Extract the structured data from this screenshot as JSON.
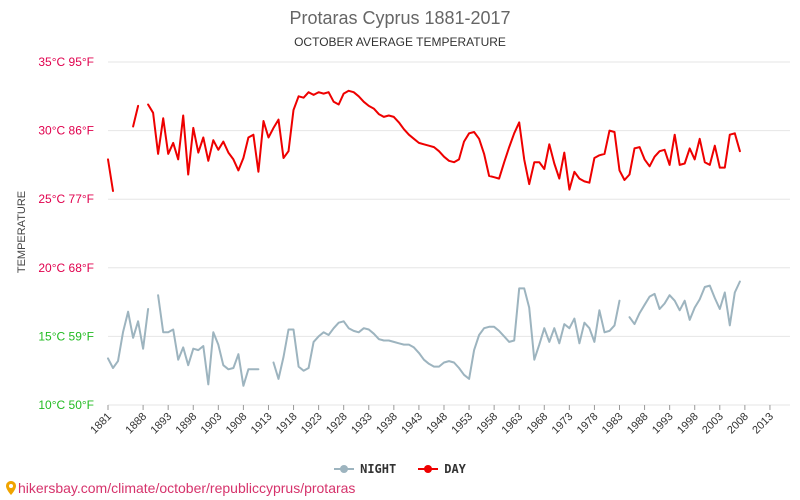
{
  "title": "Protaras Cyprus 1881-2017",
  "subtitle": "OCTOBER AVERAGE TEMPERATURE",
  "source_text": "hikersbay.com/climate/october/republiccyprus/protaras",
  "colors": {
    "night": "#9db4bf",
    "day": "#ee0000",
    "ytick_day": "#e0004d",
    "ytick_night": "#22bb22",
    "grid": "#e6e6e6"
  },
  "legend": {
    "night_label": "NIGHT",
    "day_label": "DAY"
  },
  "chart_data": {
    "type": "line",
    "title": "Protaras Cyprus 1881-2017",
    "subtitle": "OCTOBER AVERAGE TEMPERATURE",
    "ylabel": "TEMPERATURE",
    "xlabel": "",
    "xlim": [
      1881,
      2017
    ],
    "ylim": [
      10,
      35
    ],
    "grid": true,
    "legend_position": "bottom",
    "y_ticks": [
      {
        "value": 10,
        "label": "10°C 50°F"
      },
      {
        "value": 15,
        "label": "15°C 59°F"
      },
      {
        "value": 20,
        "label": "20°C 68°F"
      },
      {
        "value": 25,
        "label": "25°C 77°F"
      },
      {
        "value": 30,
        "label": "30°C 86°F"
      },
      {
        "value": 35,
        "label": "35°C 95°F"
      }
    ],
    "x_ticks": [
      1881,
      1888,
      1893,
      1898,
      1903,
      1908,
      1913,
      1918,
      1923,
      1928,
      1933,
      1938,
      1943,
      1948,
      1953,
      1958,
      1963,
      1968,
      1973,
      1978,
      1983,
      1988,
      1993,
      1998,
      2003,
      2008,
      2013
    ],
    "series": [
      {
        "name": "DAY",
        "segments": [
          [
            [
              1881,
              27.9
            ],
            [
              1882,
              25.6
            ]
          ],
          [
            [
              1886,
              30.3
            ],
            [
              1887,
              31.8
            ]
          ],
          [
            [
              1889,
              31.9
            ],
            [
              1890,
              31.3
            ],
            [
              1891,
              28.3
            ],
            [
              1892,
              30.9
            ],
            [
              1893,
              28.3
            ],
            [
              1894,
              29.1
            ],
            [
              1895,
              27.9
            ],
            [
              1896,
              31.1
            ],
            [
              1897,
              26.8
            ],
            [
              1898,
              30.2
            ],
            [
              1899,
              28.4
            ],
            [
              1900,
              29.5
            ],
            [
              1901,
              27.8
            ],
            [
              1902,
              29.3
            ],
            [
              1903,
              28.6
            ],
            [
              1904,
              29.2
            ],
            [
              1905,
              28.4
            ],
            [
              1906,
              27.9
            ],
            [
              1907,
              27.1
            ],
            [
              1908,
              28.0
            ],
            [
              1909,
              29.5
            ],
            [
              1910,
              29.7
            ],
            [
              1911,
              27.0
            ],
            [
              1912,
              30.7
            ],
            [
              1913,
              29.5
            ],
            [
              1914,
              30.2
            ],
            [
              1915,
              30.8
            ],
            [
              1916,
              28.0
            ],
            [
              1917,
              28.5
            ],
            [
              1918,
              31.5
            ],
            [
              1919,
              32.5
            ],
            [
              1920,
              32.4
            ],
            [
              1921,
              32.8
            ],
            [
              1922,
              32.6
            ],
            [
              1923,
              32.8
            ],
            [
              1924,
              32.7
            ],
            [
              1925,
              32.8
            ],
            [
              1926,
              32.1
            ],
            [
              1927,
              31.9
            ],
            [
              1928,
              32.7
            ],
            [
              1929,
              32.9
            ],
            [
              1930,
              32.8
            ],
            [
              1931,
              32.5
            ],
            [
              1932,
              32.1
            ],
            [
              1933,
              31.8
            ],
            [
              1934,
              31.6
            ],
            [
              1935,
              31.2
            ],
            [
              1936,
              31.0
            ],
            [
              1937,
              31.1
            ],
            [
              1938,
              31.0
            ],
            [
              1939,
              30.6
            ],
            [
              1940,
              30.1
            ],
            [
              1941,
              29.7
            ],
            [
              1942,
              29.4
            ],
            [
              1943,
              29.1
            ],
            [
              1944,
              29.0
            ],
            [
              1945,
              28.9
            ],
            [
              1946,
              28.8
            ],
            [
              1947,
              28.5
            ],
            [
              1948,
              28.1
            ],
            [
              1949,
              27.8
            ],
            [
              1950,
              27.7
            ],
            [
              1951,
              27.9
            ],
            [
              1952,
              29.2
            ],
            [
              1953,
              29.8
            ],
            [
              1954,
              29.9
            ],
            [
              1955,
              29.4
            ],
            [
              1956,
              28.3
            ],
            [
              1957,
              26.7
            ],
            [
              1958,
              26.6
            ],
            [
              1959,
              26.5
            ],
            [
              1960,
              27.7
            ],
            [
              1961,
              28.8
            ],
            [
              1962,
              29.8
            ],
            [
              1963,
              30.6
            ],
            [
              1964,
              27.9
            ],
            [
              1965,
              26.1
            ],
            [
              1966,
              27.7
            ],
            [
              1967,
              27.7
            ],
            [
              1968,
              27.2
            ],
            [
              1969,
              29.0
            ],
            [
              1970,
              27.6
            ],
            [
              1971,
              26.5
            ],
            [
              1972,
              28.4
            ],
            [
              1973,
              25.7
            ],
            [
              1974,
              27.0
            ],
            [
              1975,
              26.5
            ],
            [
              1976,
              26.3
            ],
            [
              1977,
              26.2
            ],
            [
              1978,
              28.0
            ],
            [
              1979,
              28.2
            ],
            [
              1980,
              28.3
            ],
            [
              1981,
              30.0
            ],
            [
              1982,
              29.9
            ],
            [
              1983,
              27.1
            ],
            [
              1984,
              26.4
            ],
            [
              1985,
              26.8
            ],
            [
              1986,
              28.7
            ],
            [
              1987,
              28.8
            ],
            [
              1988,
              27.9
            ],
            [
              1989,
              27.4
            ],
            [
              1990,
              28.1
            ],
            [
              1991,
              28.5
            ],
            [
              1992,
              28.6
            ],
            [
              1993,
              27.5
            ],
            [
              1994,
              29.7
            ],
            [
              1995,
              27.5
            ],
            [
              1996,
              27.6
            ],
            [
              1997,
              28.7
            ],
            [
              1998,
              27.9
            ],
            [
              1999,
              29.4
            ],
            [
              2000,
              27.7
            ],
            [
              2001,
              27.5
            ],
            [
              2002,
              28.9
            ],
            [
              2003,
              27.3
            ],
            [
              2004,
              27.3
            ],
            [
              2005,
              29.7
            ],
            [
              2006,
              29.8
            ],
            [
              2007,
              28.5
            ]
          ]
        ]
      },
      {
        "name": "NIGHT",
        "segments": [
          [
            [
              1881,
              13.4
            ],
            [
              1882,
              12.7
            ],
            [
              1883,
              13.2
            ],
            [
              1884,
              15.3
            ],
            [
              1885,
              16.8
            ],
            [
              1886,
              14.9
            ],
            [
              1887,
              16.1
            ],
            [
              1888,
              14.1
            ],
            [
              1889,
              17.0
            ]
          ],
          [
            [
              1891,
              18.0
            ],
            [
              1892,
              15.3
            ],
            [
              1893,
              15.3
            ],
            [
              1894,
              15.5
            ],
            [
              1895,
              13.3
            ],
            [
              1896,
              14.2
            ],
            [
              1897,
              12.9
            ],
            [
              1898,
              14.1
            ],
            [
              1899,
              14.0
            ],
            [
              1900,
              14.3
            ],
            [
              1901,
              11.5
            ],
            [
              1902,
              15.3
            ],
            [
              1903,
              14.4
            ],
            [
              1904,
              12.9
            ],
            [
              1905,
              12.6
            ],
            [
              1906,
              12.7
            ],
            [
              1907,
              13.7
            ],
            [
              1908,
              11.4
            ],
            [
              1909,
              12.6
            ],
            [
              1910,
              12.6
            ],
            [
              1911,
              12.6
            ]
          ],
          [
            [
              1914,
              13.1
            ],
            [
              1915,
              11.9
            ],
            [
              1916,
              13.5
            ],
            [
              1917,
              15.5
            ],
            [
              1918,
              15.5
            ],
            [
              1919,
              12.8
            ],
            [
              1920,
              12.5
            ],
            [
              1921,
              12.7
            ],
            [
              1922,
              14.6
            ],
            [
              1923,
              15.0
            ],
            [
              1924,
              15.3
            ],
            [
              1925,
              15.1
            ],
            [
              1926,
              15.6
            ],
            [
              1927,
              16.0
            ],
            [
              1928,
              16.1
            ],
            [
              1929,
              15.6
            ],
            [
              1930,
              15.4
            ],
            [
              1931,
              15.3
            ],
            [
              1932,
              15.6
            ],
            [
              1933,
              15.5
            ],
            [
              1934,
              15.2
            ],
            [
              1935,
              14.8
            ],
            [
              1936,
              14.7
            ],
            [
              1937,
              14.7
            ],
            [
              1938,
              14.6
            ],
            [
              1939,
              14.5
            ],
            [
              1940,
              14.4
            ],
            [
              1941,
              14.4
            ],
            [
              1942,
              14.2
            ],
            [
              1943,
              13.8
            ],
            [
              1944,
              13.3
            ],
            [
              1945,
              13.0
            ],
            [
              1946,
              12.8
            ],
            [
              1947,
              12.8
            ],
            [
              1948,
              13.1
            ],
            [
              1949,
              13.2
            ],
            [
              1950,
              13.1
            ],
            [
              1951,
              12.7
            ],
            [
              1952,
              12.2
            ],
            [
              1953,
              11.9
            ],
            [
              1954,
              14.0
            ],
            [
              1955,
              15.1
            ],
            [
              1956,
              15.6
            ],
            [
              1957,
              15.7
            ],
            [
              1958,
              15.7
            ],
            [
              1959,
              15.4
            ],
            [
              1960,
              15.0
            ],
            [
              1961,
              14.6
            ],
            [
              1962,
              14.7
            ],
            [
              1963,
              18.5
            ],
            [
              1964,
              18.5
            ],
            [
              1965,
              17.1
            ],
            [
              1966,
              13.3
            ],
            [
              1967,
              14.4
            ],
            [
              1968,
              15.6
            ],
            [
              1969,
              14.6
            ],
            [
              1970,
              15.6
            ],
            [
              1971,
              14.5
            ],
            [
              1972,
              15.9
            ],
            [
              1973,
              15.6
            ],
            [
              1974,
              16.3
            ],
            [
              1975,
              14.5
            ],
            [
              1976,
              16.0
            ],
            [
              1977,
              15.6
            ],
            [
              1978,
              14.6
            ],
            [
              1979,
              16.9
            ],
            [
              1980,
              15.3
            ],
            [
              1981,
              15.4
            ],
            [
              1982,
              15.8
            ],
            [
              1983,
              17.6
            ]
          ],
          [
            [
              1985,
              16.4
            ],
            [
              1986,
              15.9
            ],
            [
              1987,
              16.7
            ],
            [
              1988,
              17.3
            ],
            [
              1989,
              17.9
            ],
            [
              1990,
              18.1
            ],
            [
              1991,
              17.0
            ],
            [
              1992,
              17.4
            ],
            [
              1993,
              18.0
            ],
            [
              1994,
              17.6
            ],
            [
              1995,
              16.9
            ],
            [
              1996,
              17.6
            ],
            [
              1997,
              16.2
            ],
            [
              1998,
              17.1
            ],
            [
              1999,
              17.7
            ],
            [
              2000,
              18.6
            ],
            [
              2001,
              18.7
            ],
            [
              2002,
              17.8
            ],
            [
              2003,
              17.0
            ],
            [
              2004,
              18.2
            ],
            [
              2005,
              15.8
            ],
            [
              2006,
              18.2
            ],
            [
              2007,
              19.0
            ]
          ]
        ]
      }
    ]
  }
}
